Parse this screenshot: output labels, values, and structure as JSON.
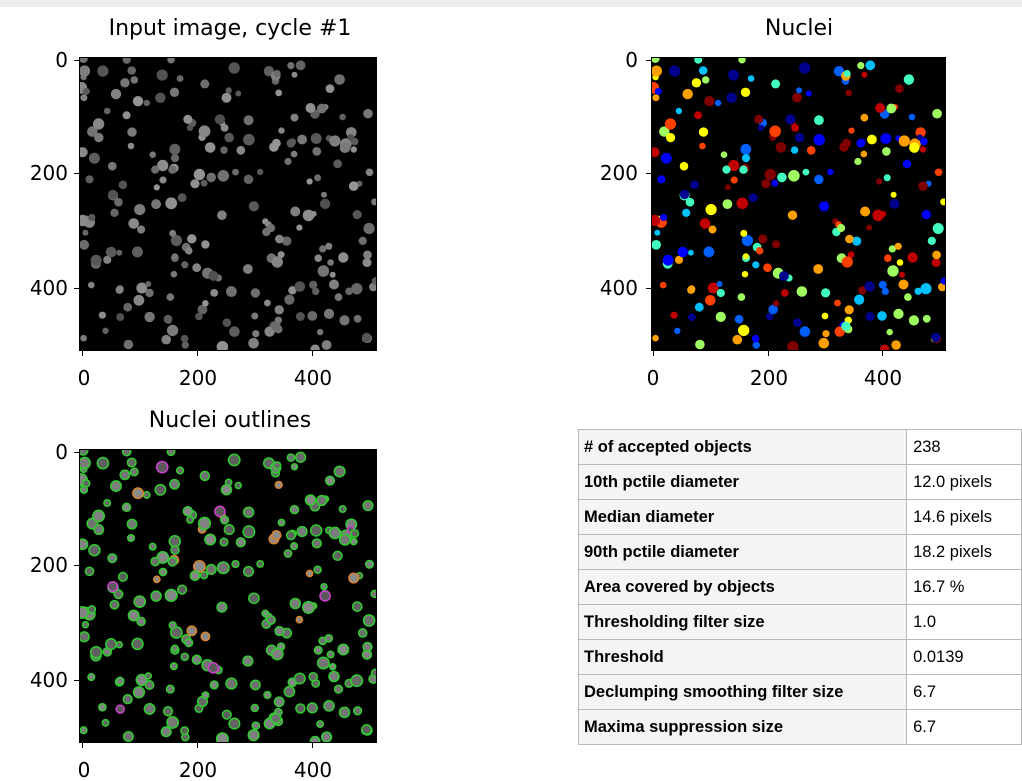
{
  "panels": {
    "input": {
      "title": "Input image, cycle #1",
      "yticks": [
        "0",
        "200",
        "400"
      ],
      "xticks": [
        "0",
        "200",
        "400"
      ]
    },
    "nuclei": {
      "title": "Nuclei",
      "yticks": [
        "0",
        "200",
        "400"
      ],
      "xticks": [
        "0",
        "200",
        "400"
      ]
    },
    "outlines": {
      "title": "Nuclei outlines",
      "yticks": [
        "0",
        "200",
        "400"
      ],
      "xticks": [
        "0",
        "200",
        "400"
      ]
    }
  },
  "stats": {
    "rows": [
      {
        "label": "# of accepted objects",
        "value": "238"
      },
      {
        "label": "10th pctile diameter",
        "value": "12.0 pixels"
      },
      {
        "label": "Median diameter",
        "value": "14.6 pixels"
      },
      {
        "label": "90th pctile diameter",
        "value": "18.2 pixels"
      },
      {
        "label": "Area covered by objects",
        "value": "16.7 %"
      },
      {
        "label": "Thresholding filter size",
        "value": "1.0"
      },
      {
        "label": "Threshold",
        "value": "0.0139"
      },
      {
        "label": "Declumping smoothing filter size",
        "value": "6.7"
      },
      {
        "label": "Maxima suppression size",
        "value": "6.7"
      }
    ]
  },
  "colors": {
    "background": "#000000",
    "outline_green": "#2ecc2e",
    "outline_orange": "#d9822b",
    "outline_magenta": "#d040d0"
  }
}
